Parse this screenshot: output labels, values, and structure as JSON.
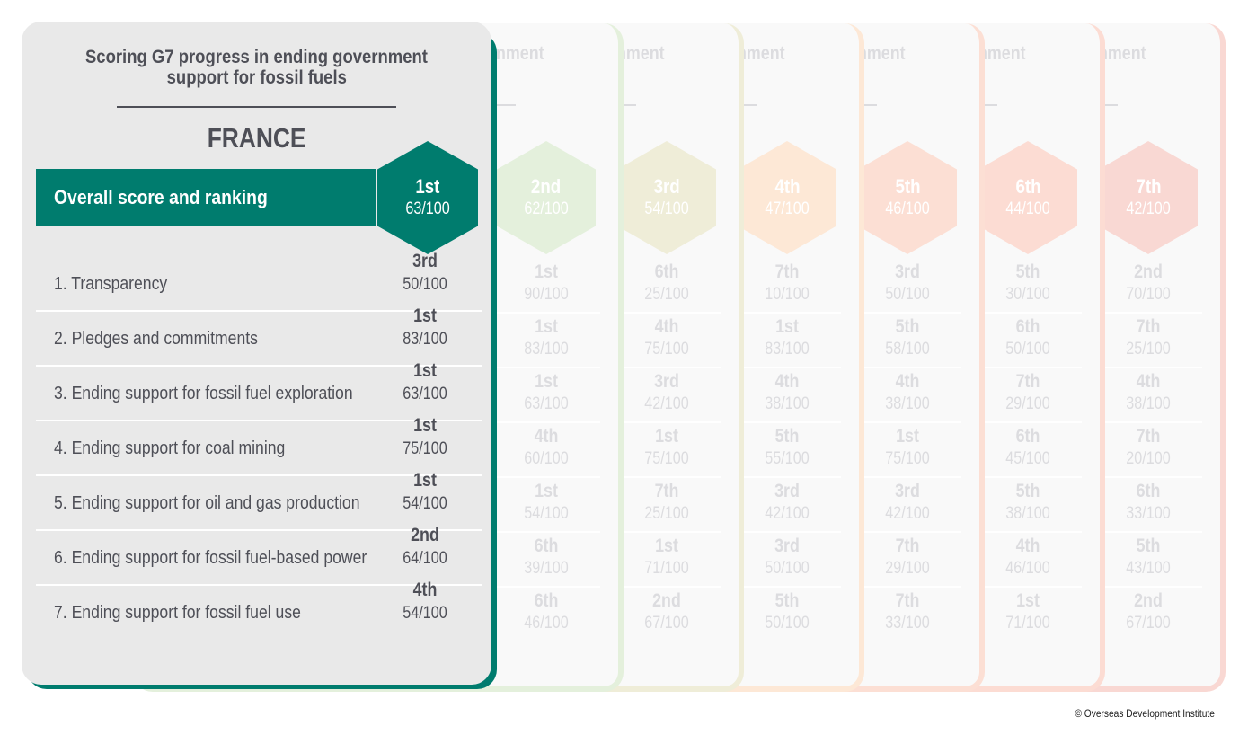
{
  "title_line1": "Scoring G7 progress in ending government",
  "title_line2": "support for fossil fuels",
  "ghost_title_fragment": "nment",
  "country": "FRANCE",
  "overall_label": "Overall score and ranking",
  "colors": {
    "primary": "#007c6e",
    "text": "#4e4f57",
    "card_bg": "#e9e9e9",
    "ghost_text": "#dcdcdf"
  },
  "categories": [
    "1. Transparency",
    "2. Pledges and commitments",
    "3. Ending support for fossil fuel exploration",
    "4. Ending support for coal mining",
    "5. Ending support for oil and gas production",
    "6. Ending support for fossil fuel-based power",
    "7. Ending support for fossil fuel use"
  ],
  "cards": [
    {
      "overall_rank": "1st",
      "overall_score": "63/100",
      "hex_color": "#007c6e",
      "edge_color": "#007c6e",
      "cells": [
        [
          "3rd",
          "50/100"
        ],
        [
          "1st",
          "83/100"
        ],
        [
          "1st",
          "63/100"
        ],
        [
          "1st",
          "75/100"
        ],
        [
          "1st",
          "54/100"
        ],
        [
          "2nd",
          "64/100"
        ],
        [
          "4th",
          "54/100"
        ]
      ]
    },
    {
      "overall_rank": "2nd",
      "overall_score": "62/100",
      "hex_color": "#e4f0dc",
      "edge_color": "#e4f0dc",
      "cells": [
        [
          "1st",
          "90/100"
        ],
        [
          "1st",
          "83/100"
        ],
        [
          "1st",
          "63/100"
        ],
        [
          "4th",
          "60/100"
        ],
        [
          "1st",
          "54/100"
        ],
        [
          "6th",
          "39/100"
        ],
        [
          "6th",
          "46/100"
        ]
      ]
    },
    {
      "overall_rank": "3rd",
      "overall_score": "54/100",
      "hex_color": "#efedd8",
      "edge_color": "#efedd8",
      "cells": [
        [
          "6th",
          "25/100"
        ],
        [
          "4th",
          "75/100"
        ],
        [
          "3rd",
          "42/100"
        ],
        [
          "1st",
          "75/100"
        ],
        [
          "7th",
          "25/100"
        ],
        [
          "1st",
          "71/100"
        ],
        [
          "2nd",
          "67/100"
        ]
      ]
    },
    {
      "overall_rank": "4th",
      "overall_score": "47/100",
      "hex_color": "#fde8d6",
      "edge_color": "#fde8d6",
      "cells": [
        [
          "7th",
          "10/100"
        ],
        [
          "1st",
          "83/100"
        ],
        [
          "4th",
          "38/100"
        ],
        [
          "5th",
          "55/100"
        ],
        [
          "3rd",
          "42/100"
        ],
        [
          "3rd",
          "50/100"
        ],
        [
          "5th",
          "50/100"
        ]
      ]
    },
    {
      "overall_rank": "5th",
      "overall_score": "46/100",
      "hex_color": "#fcdfd4",
      "edge_color": "#fcdfd4",
      "cells": [
        [
          "3rd",
          "50/100"
        ],
        [
          "5th",
          "58/100"
        ],
        [
          "4th",
          "38/100"
        ],
        [
          "1st",
          "75/100"
        ],
        [
          "3rd",
          "42/100"
        ],
        [
          "7th",
          "29/100"
        ],
        [
          "7th",
          "33/100"
        ]
      ]
    },
    {
      "overall_rank": "6th",
      "overall_score": "44/100",
      "hex_color": "#fcdcd3",
      "edge_color": "#fcdcd3",
      "cells": [
        [
          "5th",
          "30/100"
        ],
        [
          "6th",
          "50/100"
        ],
        [
          "7th",
          "29/100"
        ],
        [
          "6th",
          "45/100"
        ],
        [
          "5th",
          "38/100"
        ],
        [
          "4th",
          "46/100"
        ],
        [
          "1st",
          "71/100"
        ]
      ]
    },
    {
      "overall_rank": "7th",
      "overall_score": "42/100",
      "hex_color": "#f9d8d3",
      "edge_color": "#f9d8d3",
      "cells": [
        [
          "2nd",
          "70/100"
        ],
        [
          "7th",
          "25/100"
        ],
        [
          "4th",
          "38/100"
        ],
        [
          "7th",
          "20/100"
        ],
        [
          "6th",
          "33/100"
        ],
        [
          "5th",
          "43/100"
        ],
        [
          "2nd",
          "67/100"
        ]
      ]
    }
  ],
  "copyright": "© Overseas Development Institute",
  "chart_data": {
    "type": "table",
    "title": "Scoring G7 progress in ending government support for fossil fuels",
    "selected_country": "FRANCE",
    "columns": [
      "Overall",
      "1. Transparency",
      "2. Pledges and commitments",
      "3. Ending support for fossil fuel exploration",
      "4. Ending support for coal mining",
      "5. Ending support for oil and gas production",
      "6. Ending support for fossil fuel-based power",
      "7. Ending support for fossil fuel use"
    ],
    "rows": [
      {
        "card": "1 (France)",
        "overall": [
          "1st",
          63
        ],
        "scores": [
          [
            "3rd",
            50
          ],
          [
            "1st",
            83
          ],
          [
            "1st",
            63
          ],
          [
            "1st",
            75
          ],
          [
            "1st",
            54
          ],
          [
            "2nd",
            64
          ],
          [
            "4th",
            54
          ]
        ]
      },
      {
        "card": 2,
        "overall": [
          "2nd",
          62
        ],
        "scores": [
          [
            "1st",
            90
          ],
          [
            "1st",
            83
          ],
          [
            "1st",
            63
          ],
          [
            "4th",
            60
          ],
          [
            "1st",
            54
          ],
          [
            "6th",
            39
          ],
          [
            "6th",
            46
          ]
        ]
      },
      {
        "card": 3,
        "overall": [
          "3rd",
          54
        ],
        "scores": [
          [
            "6th",
            25
          ],
          [
            "4th",
            75
          ],
          [
            "3rd",
            42
          ],
          [
            "1st",
            75
          ],
          [
            "7th",
            25
          ],
          [
            "1st",
            71
          ],
          [
            "2nd",
            67
          ]
        ]
      },
      {
        "card": 4,
        "overall": [
          "4th",
          47
        ],
        "scores": [
          [
            "7th",
            10
          ],
          [
            "1st",
            83
          ],
          [
            "4th",
            38
          ],
          [
            "5th",
            55
          ],
          [
            "3rd",
            42
          ],
          [
            "3rd",
            50
          ],
          [
            "5th",
            50
          ]
        ]
      },
      {
        "card": 5,
        "overall": [
          "5th",
          46
        ],
        "scores": [
          [
            "3rd",
            50
          ],
          [
            "5th",
            58
          ],
          [
            "4th",
            38
          ],
          [
            "1st",
            75
          ],
          [
            "3rd",
            42
          ],
          [
            "7th",
            29
          ],
          [
            "7th",
            33
          ]
        ]
      },
      {
        "card": 6,
        "overall": [
          "6th",
          44
        ],
        "scores": [
          [
            "5th",
            30
          ],
          [
            "6th",
            50
          ],
          [
            "7th",
            29
          ],
          [
            "6th",
            45
          ],
          [
            "5th",
            38
          ],
          [
            "4th",
            46
          ],
          [
            "1st",
            71
          ]
        ]
      },
      {
        "card": 7,
        "overall": [
          "7th",
          42
        ],
        "scores": [
          [
            "2nd",
            70
          ],
          [
            "7th",
            25
          ],
          [
            "4th",
            38
          ],
          [
            "7th",
            20
          ],
          [
            "6th",
            33
          ],
          [
            "5th",
            43
          ],
          [
            "2nd",
            67
          ]
        ]
      }
    ],
    "max_score": 100
  }
}
